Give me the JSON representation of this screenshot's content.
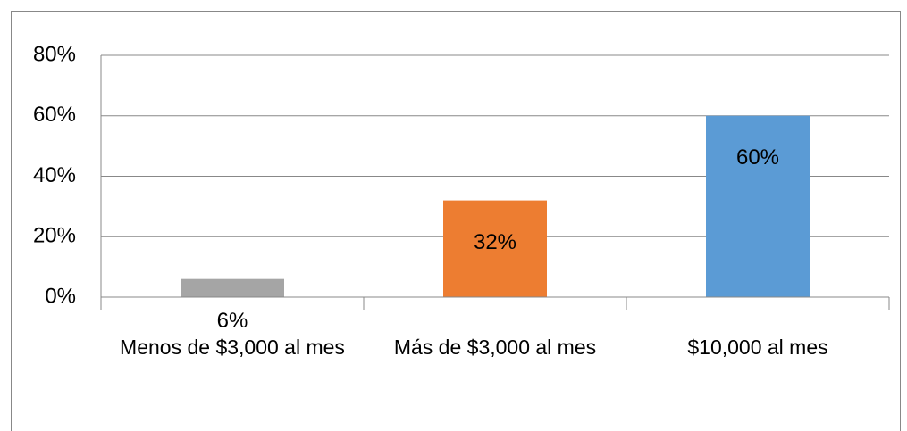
{
  "chart_data": {
    "type": "bar",
    "categories": [
      "Menos de $3,000 al mes",
      "Más de $3,000 al mes",
      "$10,000 al mes"
    ],
    "values": [
      6,
      32,
      60
    ],
    "value_labels": [
      "6%",
      "32%",
      "60%"
    ],
    "colors": [
      "#a5a5a5",
      "#ed7d31",
      "#5b9bd5"
    ],
    "ylim": [
      0,
      80
    ],
    "yticks": [
      {
        "value": 0,
        "label": "0%"
      },
      {
        "value": 20,
        "label": "20%"
      },
      {
        "value": 40,
        "label": "40%"
      },
      {
        "value": 60,
        "label": "60%"
      },
      {
        "value": 80,
        "label": "80%"
      }
    ],
    "grid": true
  }
}
